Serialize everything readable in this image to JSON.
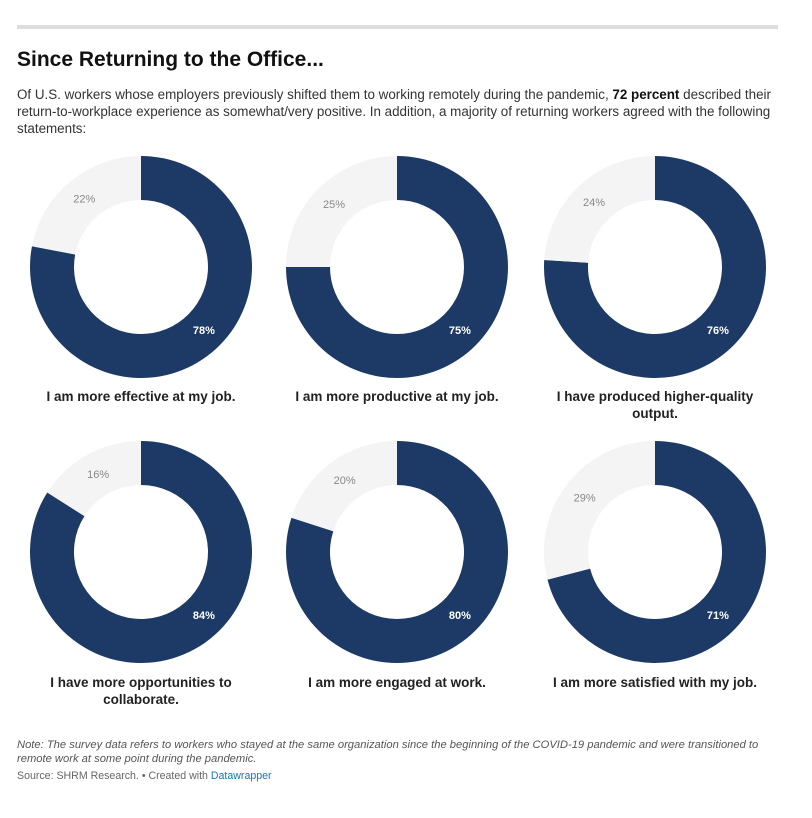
{
  "title": "Since Returning to the Office...",
  "intro": {
    "before": "Of U.S. workers whose employers previously shifted them to working remotely during the pandemic, ",
    "bold": "72 percent",
    "after": " described their return-to-workplace experience as somewhat/very positive. In addition, a majority of returning workers agreed with the following statements:"
  },
  "colors": {
    "major": "#1d3a66",
    "minor": "#f4f4f4"
  },
  "chart_data": [
    {
      "type": "pie",
      "title": "I am more effective at my job.",
      "values": [
        78,
        22
      ],
      "labels": [
        "78%",
        "22%"
      ]
    },
    {
      "type": "pie",
      "title": "I am more productive at my job.",
      "values": [
        75,
        25
      ],
      "labels": [
        "75%",
        "25%"
      ]
    },
    {
      "type": "pie",
      "title": "I have produced higher-quality output.",
      "values": [
        76,
        24
      ],
      "labels": [
        "76%",
        "24%"
      ]
    },
    {
      "type": "pie",
      "title": "I have more opportunities to collaborate.",
      "values": [
        84,
        16
      ],
      "labels": [
        "84%",
        "16%"
      ]
    },
    {
      "type": "pie",
      "title": "I am more engaged at work.",
      "values": [
        80,
        20
      ],
      "labels": [
        "80%",
        "20%"
      ]
    },
    {
      "type": "pie",
      "title": "I am more satisfied with my job.",
      "values": [
        71,
        29
      ],
      "labels": [
        "71%",
        "29%"
      ]
    }
  ],
  "note": "Note: The survey data refers to workers who stayed at the same organization since the beginning of the COVID-19 pandemic and were transitioned to remote work at some point during the pandemic.",
  "source": {
    "text": "Source: SHRM Research. • Created with ",
    "link": "Datawrapper"
  }
}
